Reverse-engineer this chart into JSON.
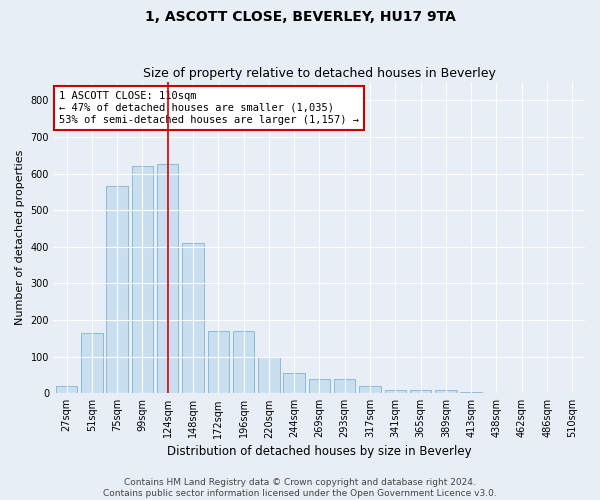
{
  "title": "1, ASCOTT CLOSE, BEVERLEY, HU17 9TA",
  "subtitle": "Size of property relative to detached houses in Beverley",
  "xlabel": "Distribution of detached houses by size in Beverley",
  "ylabel": "Number of detached properties",
  "categories": [
    "27sqm",
    "51sqm",
    "75sqm",
    "99sqm",
    "124sqm",
    "148sqm",
    "172sqm",
    "196sqm",
    "220sqm",
    "244sqm",
    "269sqm",
    "293sqm",
    "317sqm",
    "341sqm",
    "365sqm",
    "389sqm",
    "413sqm",
    "438sqm",
    "462sqm",
    "486sqm",
    "510sqm"
  ],
  "values": [
    20,
    165,
    565,
    620,
    625,
    410,
    170,
    170,
    100,
    55,
    40,
    40,
    20,
    8,
    8,
    8,
    3,
    2,
    2,
    1,
    2
  ],
  "bar_color": "#c9dff0",
  "bar_edge_color": "#7fb3d3",
  "vline_x": 4,
  "vline_color": "#cc0000",
  "annotation_text": "1 ASCOTT CLOSE: 110sqm\n← 47% of detached houses are smaller (1,035)\n53% of semi-detached houses are larger (1,157) →",
  "annotation_box_color": "#ffffff",
  "annotation_box_edge_color": "#cc0000",
  "ylim": [
    0,
    850
  ],
  "yticks": [
    0,
    100,
    200,
    300,
    400,
    500,
    600,
    700,
    800
  ],
  "background_color": "#e8eef5",
  "plot_background": "#e8eef5",
  "footer": "Contains HM Land Registry data © Crown copyright and database right 2024.\nContains public sector information licensed under the Open Government Licence v3.0.",
  "title_fontsize": 10,
  "subtitle_fontsize": 9,
  "xlabel_fontsize": 8.5,
  "ylabel_fontsize": 8,
  "tick_fontsize": 7,
  "annotation_fontsize": 7.5,
  "footer_fontsize": 6.5
}
